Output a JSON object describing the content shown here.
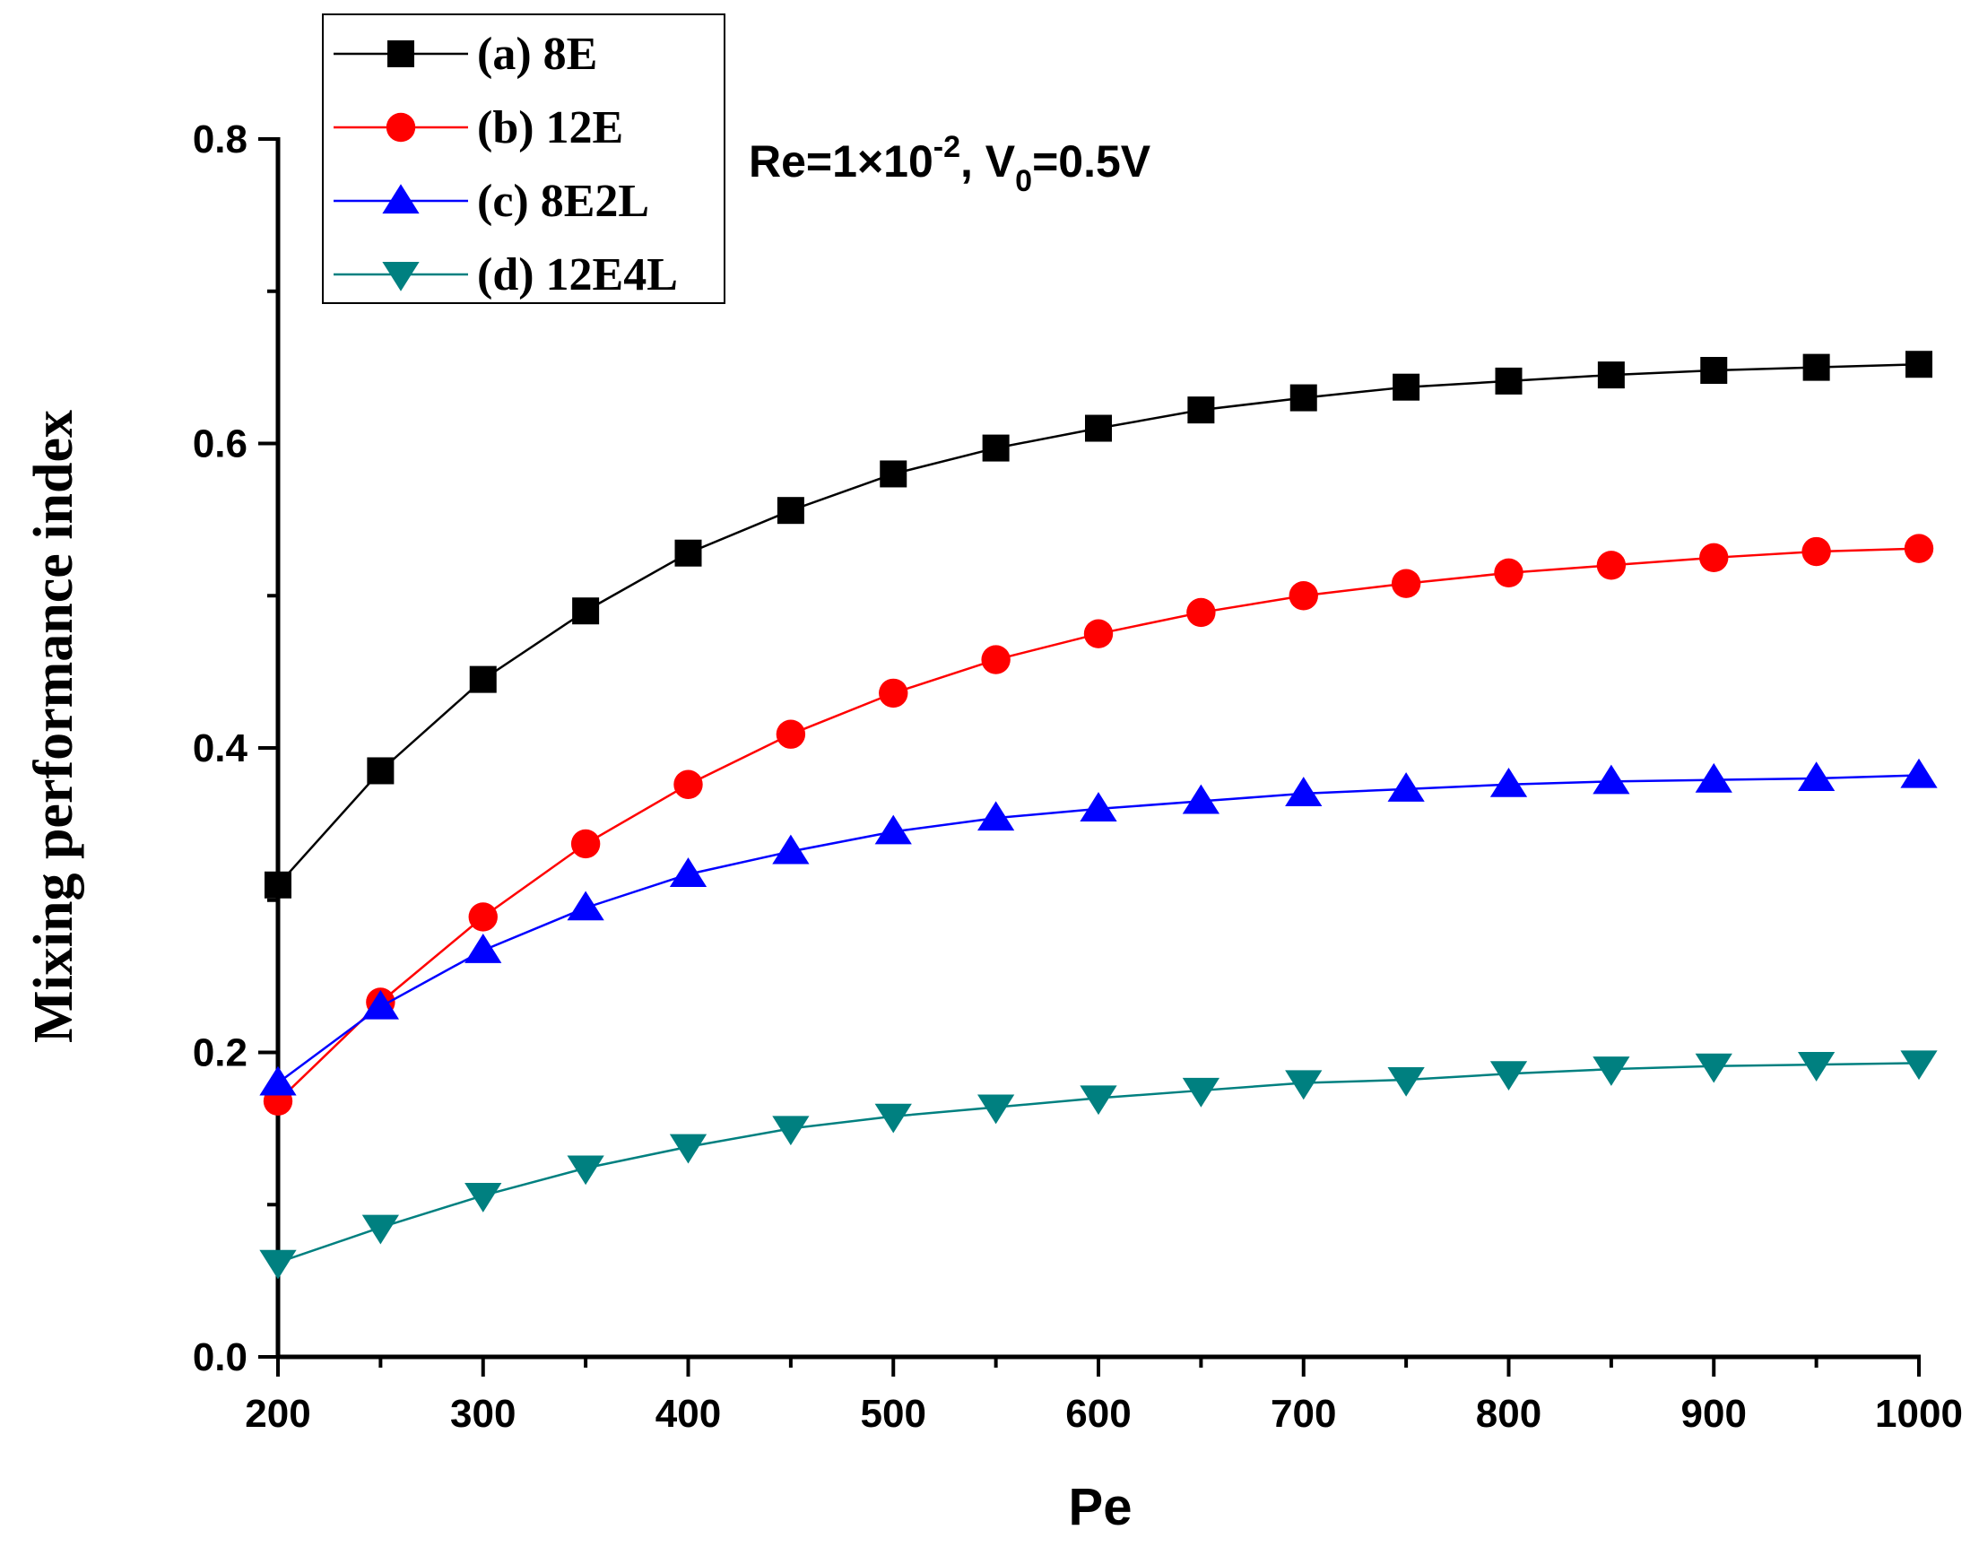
{
  "chart_data": {
    "type": "line",
    "title": "",
    "xlabel": "Pe",
    "ylabel": "Mixing performance index",
    "xlim": [
      200,
      1000
    ],
    "ylim": [
      0.0,
      0.8
    ],
    "x_ticks": [
      "200",
      "300",
      "400",
      "500",
      "600",
      "700",
      "800",
      "900",
      "1000"
    ],
    "y_ticks": [
      "0.0",
      "0.2",
      "0.4",
      "0.6",
      "0.8"
    ],
    "x": [
      200,
      250,
      300,
      350,
      400,
      450,
      500,
      550,
      600,
      650,
      700,
      750,
      800,
      850,
      900,
      950,
      1000
    ],
    "annotation": {
      "re_text": "Re=1",
      "times": "×",
      "base": "10",
      "exp": "-2",
      "comma": ", V",
      "sub": "0",
      "tail": "=0.5V"
    },
    "legend_position": "top-left",
    "series": [
      {
        "name": "(a) 8E",
        "marker": "square",
        "color": "#000000",
        "values": [
          0.31,
          0.385,
          0.445,
          0.49,
          0.528,
          0.556,
          0.58,
          0.597,
          0.61,
          0.622,
          0.63,
          0.637,
          0.641,
          0.645,
          0.648,
          0.65,
          0.652
        ]
      },
      {
        "name": "(b) 12E",
        "marker": "circle",
        "color": "#ff0000",
        "values": [
          0.168,
          0.233,
          0.289,
          0.337,
          0.376,
          0.409,
          0.436,
          0.458,
          0.475,
          0.489,
          0.5,
          0.508,
          0.515,
          0.52,
          0.525,
          0.529,
          0.531
        ]
      },
      {
        "name": "(c) 8E2L",
        "marker": "triangle-up",
        "color": "#0000ff",
        "values": [
          0.18,
          0.23,
          0.267,
          0.295,
          0.317,
          0.332,
          0.345,
          0.354,
          0.36,
          0.365,
          0.37,
          0.373,
          0.376,
          0.378,
          0.379,
          0.38,
          0.382
        ]
      },
      {
        "name": "(d) 12E4L",
        "marker": "triangle-down",
        "color": "#008080",
        "values": [
          0.062,
          0.085,
          0.106,
          0.124,
          0.138,
          0.15,
          0.158,
          0.164,
          0.17,
          0.175,
          0.18,
          0.182,
          0.186,
          0.189,
          0.191,
          0.192,
          0.193
        ]
      }
    ]
  }
}
